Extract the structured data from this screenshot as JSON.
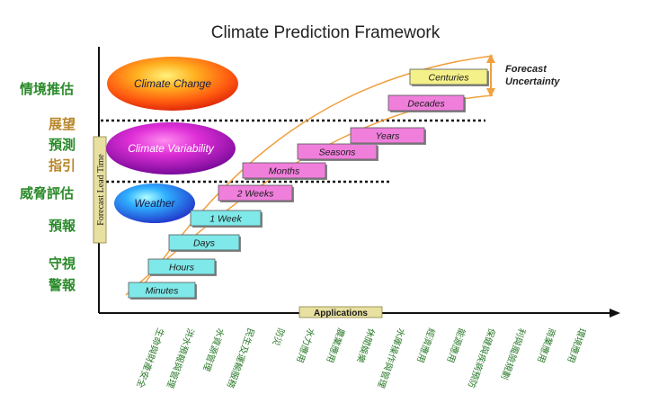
{
  "title": "Climate Prediction Framework",
  "left_labels": [
    {
      "text": "情境推估",
      "color": "#2a8a2a"
    },
    {
      "text": "展望",
      "color": "#b8862a"
    },
    {
      "text": "預測",
      "color": "#2a8a2a"
    },
    {
      "text": "指引",
      "color": "#b8862a"
    },
    {
      "text": "威脅評估",
      "color": "#2a8a2a"
    },
    {
      "text": "預報",
      "color": "#2a8a2a"
    },
    {
      "text": "守視",
      "color": "#2a8a2a"
    },
    {
      "text": "警報",
      "color": "#2a8a2a"
    }
  ],
  "y_axis_label": "Forecast Lead Time",
  "x_axis_label": "Applications",
  "ellipses": [
    {
      "label": "Climate Change",
      "color": "orange-red"
    },
    {
      "label": "Climate Variability",
      "color": "magenta-purple"
    },
    {
      "label": "Weather",
      "color": "blue"
    }
  ],
  "time_scales": [
    {
      "label": "Minutes",
      "color": "#7fe8e8"
    },
    {
      "label": "Hours",
      "color": "#7fe8e8"
    },
    {
      "label": "Days",
      "color": "#7fe8e8"
    },
    {
      "label": "1 Week",
      "color": "#7fe8e8"
    },
    {
      "label": "2 Weeks",
      "color": "#f07fdc"
    },
    {
      "label": "Months",
      "color": "#f07fdc"
    },
    {
      "label": "Seasons",
      "color": "#f07fdc"
    },
    {
      "label": "Years",
      "color": "#f07fdc"
    },
    {
      "label": "Decades",
      "color": "#f07fdc"
    },
    {
      "label": "Centuries",
      "color": "#f4f08a"
    }
  ],
  "forecast_uncertainty": [
    "Forecast",
    "Uncertainty"
  ],
  "applications": [
    "生命與財產安全",
    "洪水預報與管理",
    "水資源管理",
    "民生及運輸服務",
    "防災",
    "水力應用",
    "農業應用",
    "休閒娛樂",
    "水庫操作與管理",
    "經濟應用",
    "能源應用",
    "保健與疾病預防",
    "利與風險規劃",
    "商業應用",
    "環境應用"
  ]
}
